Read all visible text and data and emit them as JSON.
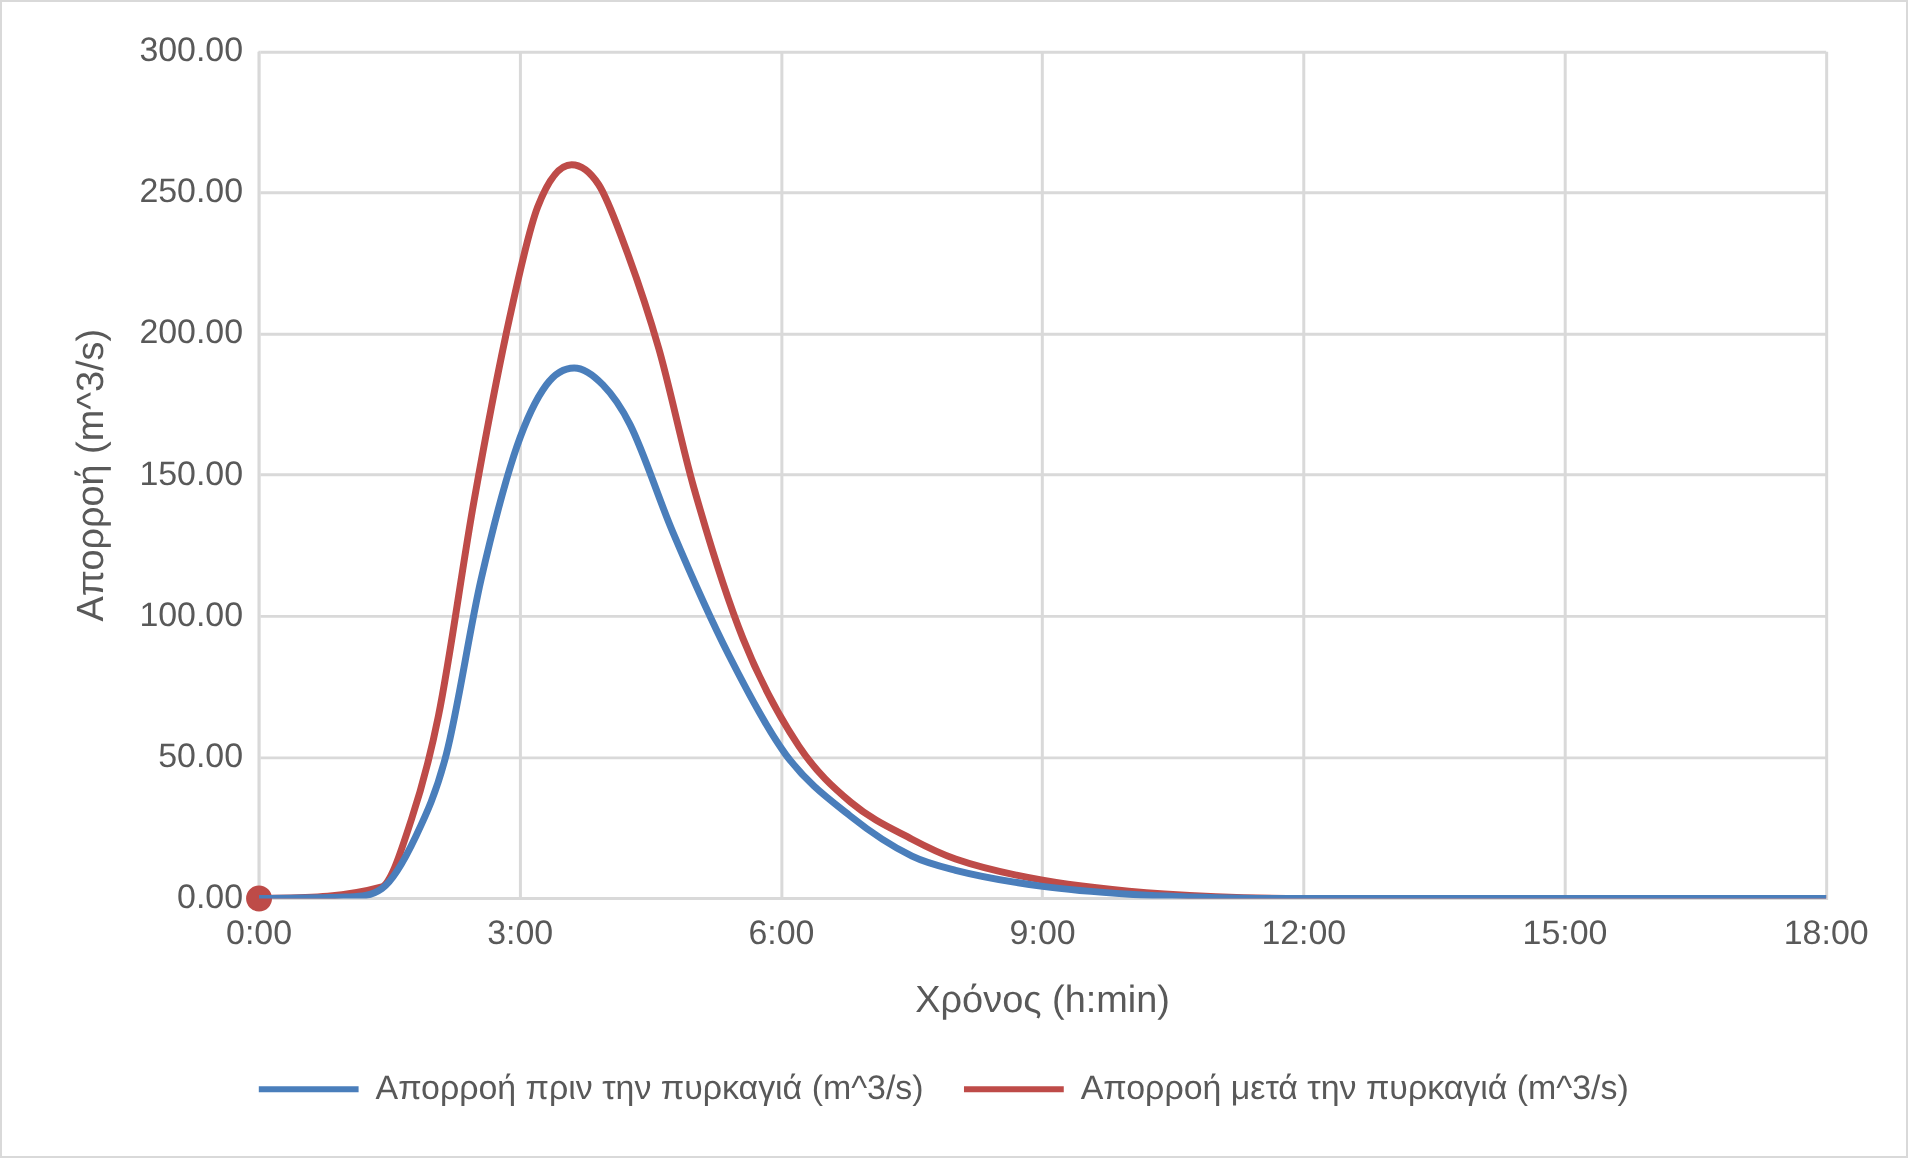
{
  "chart_data": {
    "type": "line",
    "xlabel": "Χρόνος (h:min)",
    "ylabel": "Απορροή (m^3/s)",
    "xlim": [
      0,
      18
    ],
    "xticks": [
      {
        "value": 0,
        "label": "0:00"
      },
      {
        "value": 3,
        "label": "3:00"
      },
      {
        "value": 6,
        "label": "6:00"
      },
      {
        "value": 9,
        "label": "9:00"
      },
      {
        "value": 12,
        "label": "12:00"
      },
      {
        "value": 15,
        "label": "15:00"
      },
      {
        "value": 18,
        "label": "18:00"
      }
    ],
    "ylim": [
      0,
      300
    ],
    "yticks": [
      {
        "value": 0,
        "label": "0.00"
      },
      {
        "value": 50,
        "label": "50.00"
      },
      {
        "value": 100,
        "label": "100.00"
      },
      {
        "value": 150,
        "label": "150.00"
      },
      {
        "value": 200,
        "label": "200.00"
      },
      {
        "value": 250,
        "label": "250.00"
      },
      {
        "value": 300,
        "label": "300.00"
      }
    ],
    "grid": true,
    "legend": "bottom",
    "marker": "none",
    "line_style": "solid",
    "series": [
      {
        "name": "Απορροή πριν την πυρκαγιά (m^3/s)",
        "color": "#4a7ebb",
        "x": [
          0,
          1,
          1.41,
          1.8,
          2.15,
          2.55,
          2.96,
          3.3,
          3.62,
          3.95,
          4.26,
          4.75,
          5.4,
          6.05,
          6.8,
          7.5,
          8,
          9,
          10,
          11,
          12,
          18
        ],
        "values": [
          0,
          0.5,
          3.5,
          22,
          51,
          113,
          160,
          182,
          188,
          182,
          168,
          130,
          86,
          51,
          29,
          15,
          10,
          4.3,
          1.5,
          0.3,
          0,
          0
        ]
      },
      {
        "name": "Απορροή μετά την πυρκαγιά (m^3/s)",
        "color": "#be4b48",
        "x": [
          0,
          1.4,
          1.75,
          2.06,
          2.47,
          2.88,
          3.2,
          3.59,
          3.9,
          4.18,
          4.59,
          4.99,
          5.56,
          6.2,
          6.8,
          7.5,
          8,
          9,
          10.4,
          12,
          18
        ],
        "values": [
          0,
          4,
          28,
          64.6,
          141,
          206,
          245,
          260,
          253,
          233,
          195,
          146,
          92,
          54,
          34,
          21,
          14,
          6.5,
          1.6,
          0,
          0
        ]
      },
      {
        "type": "scatter",
        "marker": "circle",
        "color": "#be4b48",
        "x": [
          0
        ],
        "values": [
          0
        ]
      }
    ]
  }
}
